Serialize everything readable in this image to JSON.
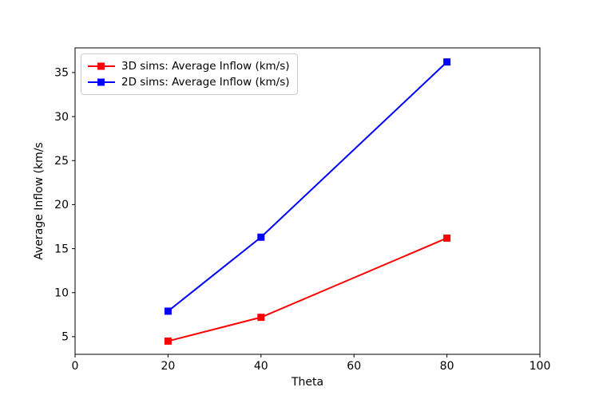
{
  "chart_data": {
    "type": "line",
    "xlabel": "Theta",
    "ylabel": "Average Inflow (km/s",
    "x": [
      20,
      40,
      80
    ],
    "series": [
      {
        "name": "3D sims: Average Inflow (km/s)",
        "color": "#ff0000",
        "marker": "square",
        "values": [
          4.5,
          7.2,
          16.2
        ]
      },
      {
        "name": "2D sims: Average Inflow (km/s)",
        "color": "#0000ff",
        "marker": "square",
        "values": [
          7.9,
          16.3,
          36.2
        ]
      }
    ],
    "xlim": [
      0,
      100
    ],
    "ylim": [
      3.0,
      37.8
    ],
    "xticks": [
      0,
      20,
      40,
      60,
      80,
      100
    ],
    "yticks": [
      5,
      10,
      15,
      20,
      25,
      30,
      35
    ],
    "grid": false,
    "legend_position": "upper left",
    "background_color": "#ffffff",
    "axis_color": "#000000"
  }
}
